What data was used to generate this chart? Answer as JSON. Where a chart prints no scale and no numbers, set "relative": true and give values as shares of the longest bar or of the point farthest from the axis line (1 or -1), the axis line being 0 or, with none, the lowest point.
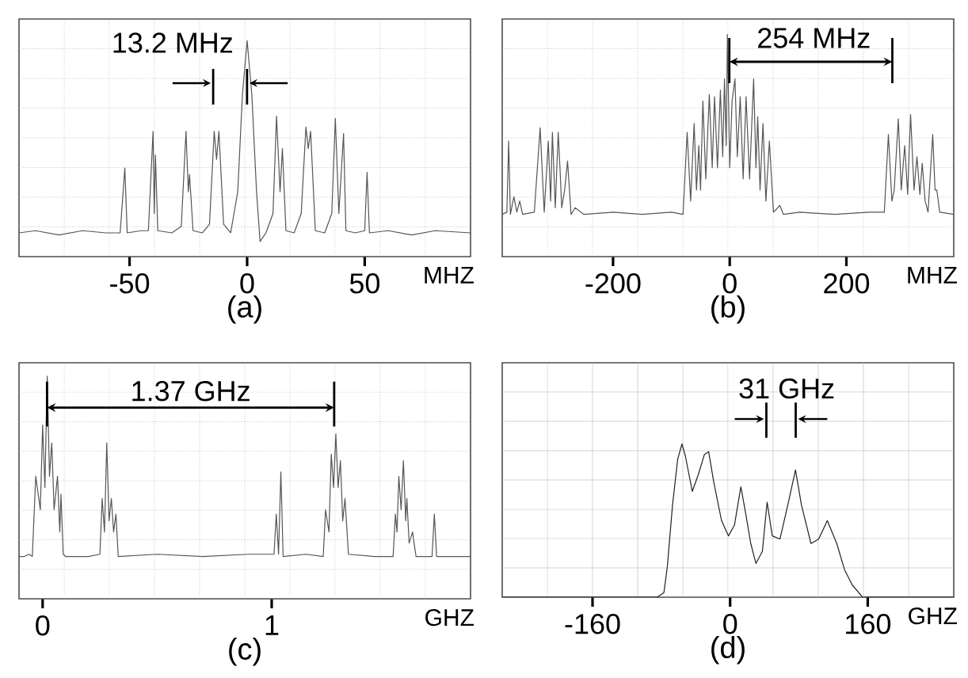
{
  "chart_data": [
    {
      "type": "line",
      "relative": true,
      "title": "(a)",
      "xlabel": "MHZ",
      "annotations": [
        "13.2 MHz"
      ],
      "xlim": [
        -97,
        95
      ],
      "xticks": [
        -50,
        0,
        50
      ],
      "grid": true,
      "color": "#555555",
      "x": [
        -97,
        -90,
        -80,
        -70,
        -60,
        -54,
        -52,
        -51,
        -45,
        -42,
        -40,
        -39.5,
        -39,
        -38,
        -32,
        -28,
        -26,
        -25,
        -24.5,
        -23,
        -19,
        -16,
        -14,
        -13,
        -12,
        -10,
        -7,
        -4,
        -2,
        0,
        2,
        4,
        5.5,
        8,
        11,
        12.5,
        14,
        15,
        16.5,
        20,
        23,
        25,
        26,
        27,
        29,
        33,
        36,
        37.5,
        39,
        41,
        42,
        46,
        50,
        51,
        52,
        60,
        70,
        80,
        95
      ],
      "values": [
        0.11,
        0.12,
        0.1,
        0.12,
        0.11,
        0.11,
        0.41,
        0.11,
        0.12,
        0.12,
        0.58,
        0.2,
        0.47,
        0.12,
        0.11,
        0.14,
        0.58,
        0.3,
        0.38,
        0.12,
        0.11,
        0.15,
        0.58,
        0.45,
        0.58,
        0.15,
        0.11,
        0.3,
        0.75,
        1.0,
        0.75,
        0.3,
        0.07,
        0.11,
        0.2,
        0.65,
        0.3,
        0.5,
        0.12,
        0.11,
        0.2,
        0.6,
        0.5,
        0.58,
        0.12,
        0.11,
        0.2,
        0.64,
        0.2,
        0.57,
        0.12,
        0.11,
        0.12,
        0.39,
        0.11,
        0.12,
        0.1,
        0.12,
        0.11
      ]
    },
    {
      "type": "line",
      "relative": true,
      "title": "(b)",
      "xlabel": "MHZ",
      "annotations": [
        "254 MHz"
      ],
      "xlim": [
        -390,
        384
      ],
      "xticks": [
        -200,
        0,
        200
      ],
      "grid": true,
      "color": "#555555",
      "x": [
        -390,
        -382,
        -379,
        -376,
        -370,
        -365,
        -360,
        -355,
        -335,
        -325,
        -318,
        -311,
        -307,
        -304,
        -299,
        -294,
        -291,
        -288,
        -283,
        -278,
        -272,
        -265,
        -250,
        -200,
        -150,
        -100,
        -80,
        -73,
        -67,
        -61,
        -57,
        -53,
        -50,
        -46,
        -41,
        -35,
        -30,
        -26,
        -21,
        -16,
        -12,
        -9,
        -6,
        -4,
        0,
        4,
        9,
        13,
        18,
        23,
        28,
        34,
        41,
        45,
        48,
        52,
        57,
        62,
        68,
        75,
        86,
        92,
        120,
        180,
        240,
        265,
        272,
        278,
        282,
        289,
        294,
        300,
        305,
        310,
        316,
        321,
        326,
        330,
        335,
        340,
        348,
        352,
        355,
        360,
        384
      ],
      "values": [
        0.19,
        0.2,
        0.52,
        0.19,
        0.27,
        0.2,
        0.25,
        0.19,
        0.2,
        0.58,
        0.2,
        0.52,
        0.25,
        0.56,
        0.22,
        0.56,
        0.4,
        0.22,
        0.3,
        0.43,
        0.19,
        0.22,
        0.19,
        0.2,
        0.19,
        0.2,
        0.19,
        0.56,
        0.25,
        0.6,
        0.3,
        0.5,
        0.3,
        0.7,
        0.35,
        0.73,
        0.4,
        0.72,
        0.4,
        0.75,
        0.45,
        0.8,
        0.5,
        1.0,
        0.4,
        0.7,
        0.8,
        0.45,
        0.72,
        0.35,
        0.72,
        0.35,
        0.8,
        0.4,
        0.63,
        0.3,
        0.6,
        0.25,
        0.52,
        0.2,
        0.23,
        0.19,
        0.2,
        0.19,
        0.2,
        0.2,
        0.55,
        0.25,
        0.3,
        0.62,
        0.3,
        0.5,
        0.28,
        0.64,
        0.3,
        0.45,
        0.28,
        0.42,
        0.25,
        0.2,
        0.55,
        0.3,
        0.3,
        0.2,
        0.19
      ]
    },
    {
      "type": "line",
      "relative": true,
      "title": "(c)",
      "xlabel": "GHZ",
      "annotations": [
        "1.37 GHz"
      ],
      "xlim": [
        -0.103,
        1.868
      ],
      "xticks": [
        0,
        1
      ],
      "grid": true,
      "color": "#555555",
      "x": [
        -0.103,
        -0.08,
        -0.06,
        -0.045,
        -0.03,
        -0.01,
        0.0,
        0.01,
        0.02,
        0.03,
        0.04,
        0.05,
        0.065,
        0.075,
        0.08,
        0.09,
        0.1,
        0.2,
        0.25,
        0.26,
        0.27,
        0.28,
        0.29,
        0.3,
        0.31,
        0.32,
        0.33,
        0.5,
        0.7,
        0.9,
        1.01,
        1.02,
        1.03,
        1.04,
        1.05,
        1.15,
        1.225,
        1.235,
        1.25,
        1.26,
        1.27,
        1.28,
        1.29,
        1.3,
        1.31,
        1.32,
        1.335,
        1.45,
        1.53,
        1.54,
        1.547,
        1.555,
        1.565,
        1.575,
        1.585,
        1.59,
        1.6,
        1.615,
        1.63,
        1.7,
        1.71,
        1.72,
        1.868
      ],
      "values": [
        0.19,
        0.19,
        0.2,
        0.19,
        0.55,
        0.4,
        0.78,
        0.5,
        1.0,
        0.55,
        0.7,
        0.4,
        0.55,
        0.3,
        0.47,
        0.2,
        0.19,
        0.19,
        0.2,
        0.45,
        0.3,
        0.7,
        0.35,
        0.45,
        0.3,
        0.38,
        0.19,
        0.2,
        0.19,
        0.2,
        0.2,
        0.38,
        0.2,
        0.57,
        0.19,
        0.2,
        0.19,
        0.4,
        0.3,
        0.65,
        0.5,
        0.74,
        0.5,
        0.62,
        0.35,
        0.45,
        0.2,
        0.19,
        0.19,
        0.38,
        0.3,
        0.55,
        0.4,
        0.62,
        0.35,
        0.45,
        0.25,
        0.3,
        0.19,
        0.19,
        0.38,
        0.19,
        0.19
      ]
    },
    {
      "type": "line",
      "relative": true,
      "title": "(d)",
      "xlabel": "GHZ",
      "annotations": [
        "31 GHz"
      ],
      "xlim": [
        -265,
        260
      ],
      "xticks": [
        -160,
        0,
        160
      ],
      "grid": true,
      "color": "#222222",
      "x": [
        -265,
        -85,
        -77,
        -73,
        -67,
        -61,
        -56,
        -52,
        -44,
        -37,
        -30,
        -25,
        -19,
        -10,
        -2,
        5,
        12.5,
        18,
        24,
        30,
        37.5,
        43,
        49,
        58,
        67,
        76,
        83,
        94,
        103,
        113,
        124,
        133,
        142,
        154,
        260
      ],
      "values": [
        0,
        0,
        0.03,
        0.2,
        0.6,
        0.9,
        1.0,
        0.92,
        0.69,
        0.8,
        0.93,
        0.95,
        0.75,
        0.5,
        0.4,
        0.47,
        0.72,
        0.55,
        0.35,
        0.22,
        0.3,
        0.62,
        0.4,
        0.38,
        0.6,
        0.83,
        0.6,
        0.35,
        0.38,
        0.5,
        0.35,
        0.18,
        0.08,
        0,
        0
      ]
    }
  ]
}
